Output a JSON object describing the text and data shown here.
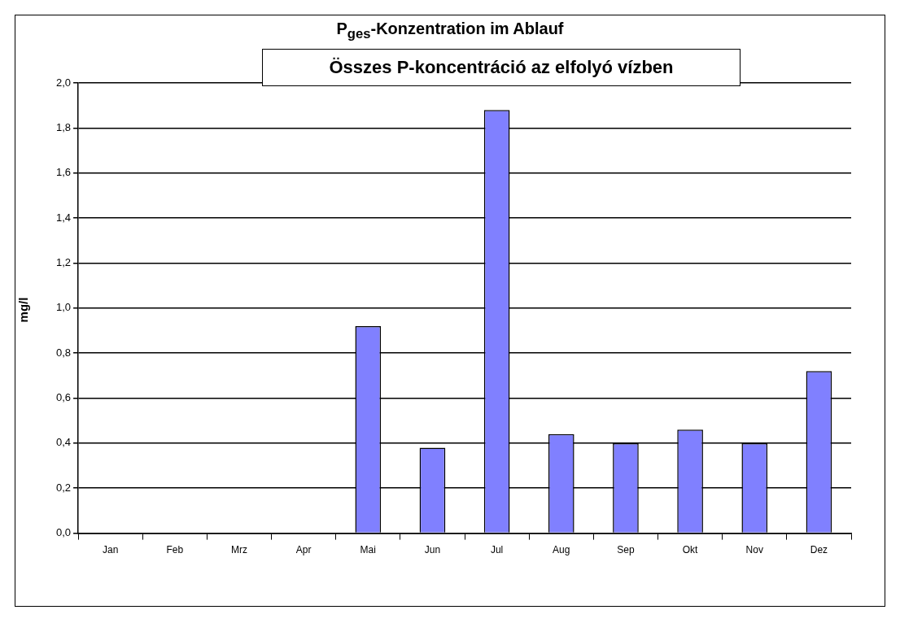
{
  "chart_data": {
    "type": "bar",
    "title": "P$_{ges}$-Konzentration im Ablauf",
    "subtitle": "Összes P-koncentráció az elfolyó vízben",
    "ylabel": "mg/l",
    "categories": [
      "Jan",
      "Feb",
      "Mrz",
      "Apr",
      "Mai",
      "Jun",
      "Jul",
      "Aug",
      "Sep",
      "Okt",
      "Nov",
      "Dez"
    ],
    "values": [
      null,
      null,
      null,
      null,
      0.92,
      0.38,
      1.88,
      0.44,
      0.4,
      0.46,
      0.4,
      0.72
    ],
    "color": "#8080ff",
    "ylim": [
      0,
      2.0
    ],
    "yticks": [
      {
        "value": 0,
        "label": "0,0"
      },
      {
        "value": 0.2,
        "label": "0,2"
      },
      {
        "value": 0.4,
        "label": "0,4"
      },
      {
        "value": 0.6,
        "label": "0,6"
      },
      {
        "value": 0.8,
        "label": "0,8"
      },
      {
        "value": 1.0,
        "label": "1,0"
      },
      {
        "value": 1.2,
        "label": "1,2"
      },
      {
        "value": 1.4,
        "label": "1,4"
      },
      {
        "value": 1.6,
        "label": "1,6"
      },
      {
        "value": 1.8,
        "label": "1,8"
      },
      {
        "value": 2.0,
        "label": "2,0"
      }
    ],
    "grid": "y",
    "legend": false
  }
}
